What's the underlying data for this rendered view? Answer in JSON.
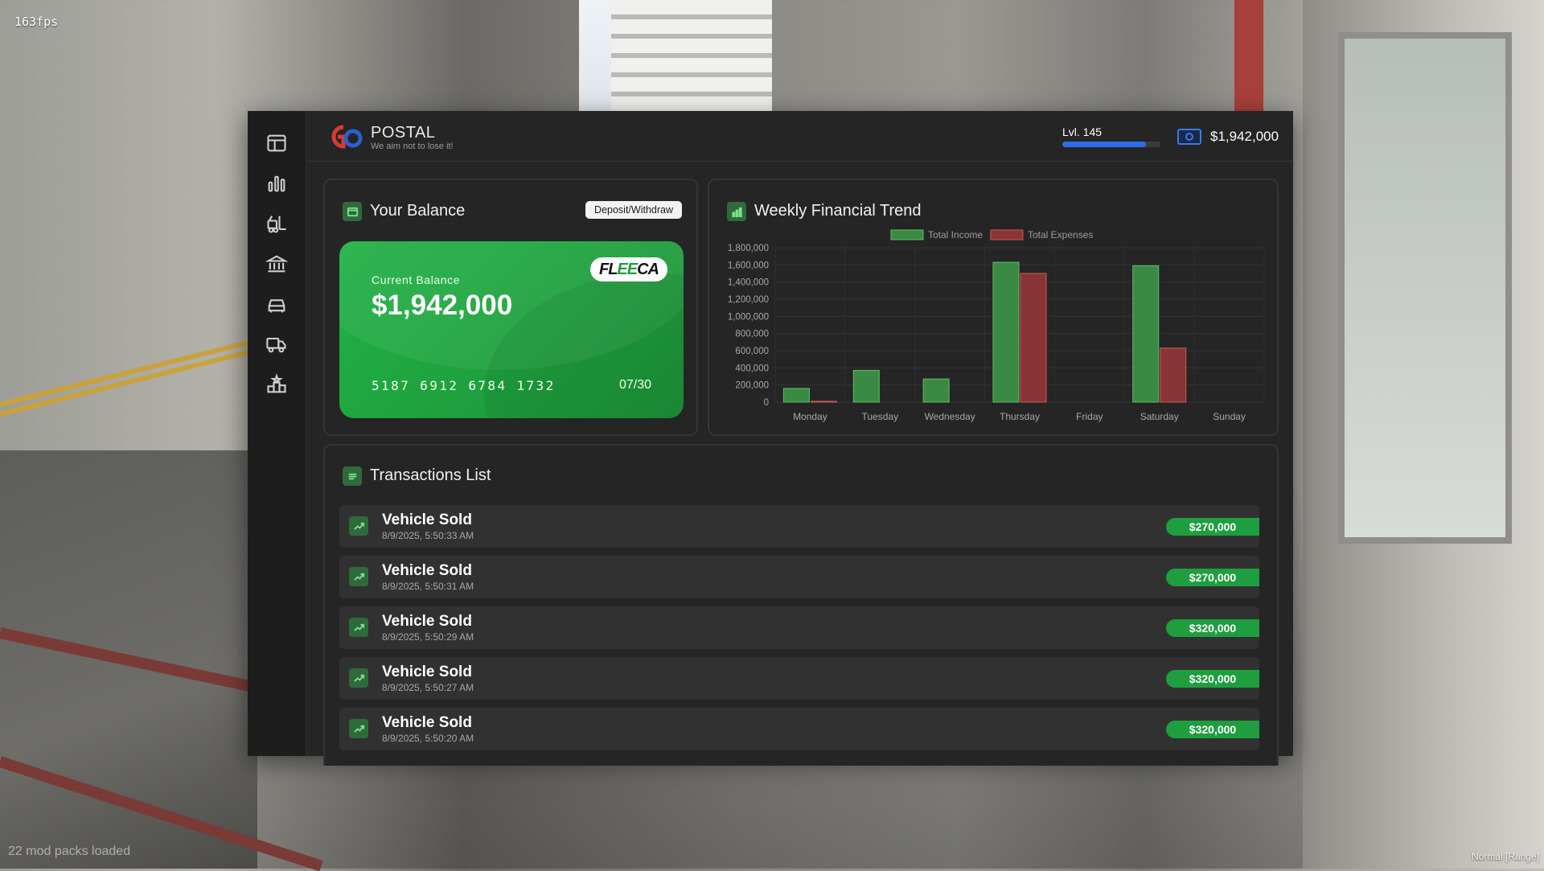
{
  "hud": {
    "fps": "163fps",
    "mod_packs": "22 mod packs loaded",
    "mode": "Normal [Range]"
  },
  "brand": {
    "name": "POSTAL",
    "tagline": "We aim not to lose it!"
  },
  "player": {
    "level_label": "Lvl. 145",
    "level_progress": 0.85,
    "money": "$1,942,000"
  },
  "sidebar": {
    "items": [
      {
        "icon": "dashboard-icon"
      },
      {
        "icon": "bar-chart-icon"
      },
      {
        "icon": "forklift-icon"
      },
      {
        "icon": "bank-icon"
      },
      {
        "icon": "car-icon"
      },
      {
        "icon": "truck-icon"
      },
      {
        "icon": "rank-podium-icon"
      }
    ]
  },
  "balance": {
    "title": "Your Balance",
    "button_label": "Deposit/Withdraw",
    "card": {
      "label": "Current Balance",
      "value": "$1,942,000",
      "bank_logo_prefix": "FL",
      "bank_logo_accent": "EE",
      "bank_logo_suffix": "CA",
      "number": "5187 6912 6784 1732",
      "expiry": "07/30"
    }
  },
  "trend": {
    "title": "Weekly Financial Trend",
    "chart_data": {
      "type": "bar",
      "categories": [
        "Monday",
        "Tuesday",
        "Wednesday",
        "Thursday",
        "Friday",
        "Saturday",
        "Sunday"
      ],
      "series": [
        {
          "name": "Total Income",
          "values": [
            160000,
            370000,
            270000,
            1630000,
            0,
            1590000,
            0
          ],
          "color": "#3a8a44"
        },
        {
          "name": "Total Expenses",
          "values": [
            10000,
            0,
            0,
            1500000,
            0,
            630000,
            0
          ],
          "color": "#8a3535"
        }
      ],
      "ylim": [
        0,
        1800000
      ],
      "yticks": [
        {
          "value": 0,
          "label": "0"
        },
        {
          "value": 200000,
          "label": "200,000"
        },
        {
          "value": 400000,
          "label": "400,000"
        },
        {
          "value": 600000,
          "label": "600,000"
        },
        {
          "value": 800000,
          "label": "800,000"
        },
        {
          "value": 1000000,
          "label": "1,000,000"
        },
        {
          "value": 1200000,
          "label": "1,200,000"
        },
        {
          "value": 1400000,
          "label": "1,400,000"
        },
        {
          "value": 1600000,
          "label": "1,600,000"
        },
        {
          "value": 1800000,
          "label": "1,800,000"
        }
      ],
      "legend": "top-center",
      "grid": true
    }
  },
  "transactions": {
    "title": "Transactions List",
    "items": [
      {
        "title": "Vehicle Sold",
        "date": "8/9/2025, 5:50:33 AM",
        "amount": "$270,000"
      },
      {
        "title": "Vehicle Sold",
        "date": "8/9/2025, 5:50:31 AM",
        "amount": "$270,000"
      },
      {
        "title": "Vehicle Sold",
        "date": "8/9/2025, 5:50:29 AM",
        "amount": "$320,000"
      },
      {
        "title": "Vehicle Sold",
        "date": "8/9/2025, 5:50:27 AM",
        "amount": "$320,000"
      },
      {
        "title": "Vehicle Sold",
        "date": "8/9/2025, 5:50:20 AM",
        "amount": "$320,000"
      }
    ]
  }
}
